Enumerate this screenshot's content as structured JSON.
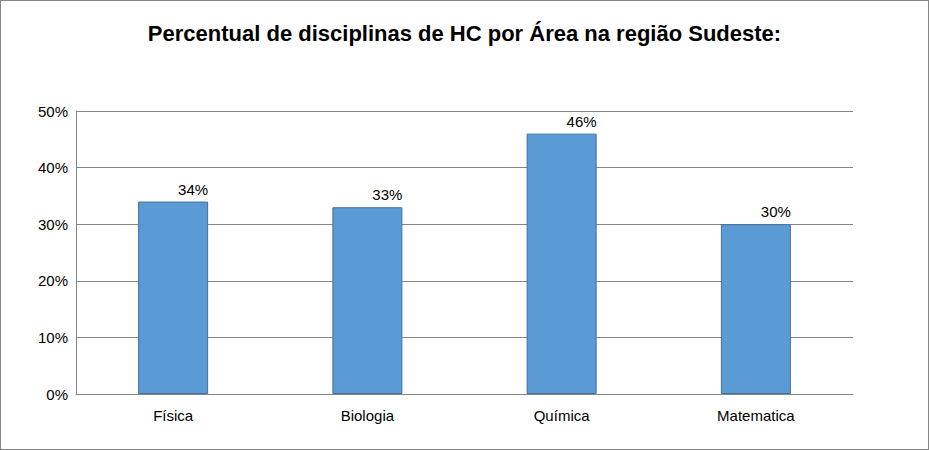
{
  "chart_data": {
    "type": "bar",
    "title": "Percentual de disciplinas de HC por Área na região Sudeste:",
    "categories": [
      "Física",
      "Biologia",
      "Química",
      "Matematica"
    ],
    "values": [
      34,
      33,
      46,
      30
    ],
    "value_labels": [
      "34%",
      "33%",
      "46%",
      "30%"
    ],
    "data_labels": true,
    "color": "#5b9bd5",
    "ylim": [
      0,
      50
    ],
    "yticks": [
      {
        "value": 0,
        "label": "0%"
      },
      {
        "value": 10,
        "label": "10%"
      },
      {
        "value": 20,
        "label": "20%"
      },
      {
        "value": 30,
        "label": "30%"
      },
      {
        "value": 40,
        "label": "40%"
      },
      {
        "value": 50,
        "label": "50%"
      }
    ],
    "grid": true
  }
}
